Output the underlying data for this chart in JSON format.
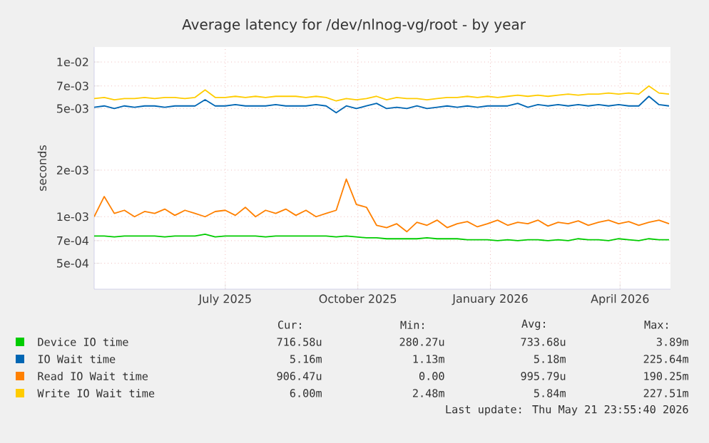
{
  "chart_data": {
    "type": "line",
    "title": "Average latency for /dev/nlnog-vg/root - by year",
    "ylabel": "seconds",
    "log": "y",
    "grid": true,
    "legend": "bottom",
    "xlim": [
      "2025-04-16",
      "2026-05-21"
    ],
    "ylim": [
      0.00034,
      0.0125
    ],
    "xticks": [
      {
        "value": "2025-07-16",
        "label": "July 2025"
      },
      {
        "value": "2025-10-16",
        "label": "October 2025"
      },
      {
        "value": "2026-01-16",
        "label": "January 2026"
      },
      {
        "value": "2026-04-16",
        "label": "April 2026"
      }
    ],
    "yticks": [
      {
        "value": 0.0005,
        "label": "5e-04"
      },
      {
        "value": 0.0007,
        "label": "7e-04"
      },
      {
        "value": 0.001,
        "label": "1e-03"
      },
      {
        "value": 0.002,
        "label": "2e-03"
      },
      {
        "value": 0.005,
        "label": "5e-03"
      },
      {
        "value": 0.007,
        "label": "7e-03"
      },
      {
        "value": 0.01,
        "label": "1e-02"
      }
    ],
    "x": [
      "2025-04-16",
      "2025-04-23",
      "2025-04-30",
      "2025-05-07",
      "2025-05-14",
      "2025-05-21",
      "2025-05-28",
      "2025-06-04",
      "2025-06-11",
      "2025-06-18",
      "2025-06-25",
      "2025-07-02",
      "2025-07-09",
      "2025-07-16",
      "2025-07-23",
      "2025-07-30",
      "2025-08-06",
      "2025-08-13",
      "2025-08-20",
      "2025-08-27",
      "2025-09-03",
      "2025-09-10",
      "2025-09-17",
      "2025-09-24",
      "2025-10-01",
      "2025-10-08",
      "2025-10-15",
      "2025-10-22",
      "2025-10-29",
      "2025-11-05",
      "2025-11-12",
      "2025-11-19",
      "2025-11-26",
      "2025-12-03",
      "2025-12-10",
      "2025-12-17",
      "2025-12-24",
      "2025-12-31",
      "2026-01-07",
      "2026-01-14",
      "2026-01-21",
      "2026-01-28",
      "2026-02-04",
      "2026-02-11",
      "2026-02-18",
      "2026-02-25",
      "2026-03-04",
      "2026-03-11",
      "2026-03-18",
      "2026-03-25",
      "2026-04-01",
      "2026-04-08",
      "2026-04-15",
      "2026-04-22",
      "2026-04-29",
      "2026-05-06",
      "2026-05-13",
      "2026-05-20"
    ],
    "series": [
      {
        "name": "Device IO time",
        "color": "#00cc00",
        "values": [
          0.00075,
          0.00075,
          0.00074,
          0.00075,
          0.00075,
          0.00075,
          0.00075,
          0.00074,
          0.00075,
          0.00075,
          0.00075,
          0.00077,
          0.00074,
          0.00075,
          0.00075,
          0.00075,
          0.00075,
          0.00074,
          0.00075,
          0.00075,
          0.00075,
          0.00075,
          0.00075,
          0.00075,
          0.00074,
          0.00075,
          0.00074,
          0.00073,
          0.00073,
          0.00072,
          0.00072,
          0.00072,
          0.00072,
          0.00073,
          0.00072,
          0.00072,
          0.00072,
          0.00071,
          0.00071,
          0.00071,
          0.0007,
          0.00071,
          0.0007,
          0.00071,
          0.00071,
          0.0007,
          0.00071,
          0.0007,
          0.00072,
          0.00071,
          0.00071,
          0.0007,
          0.00072,
          0.00071,
          0.0007,
          0.00072,
          0.00071,
          0.00071
        ]
      },
      {
        "name": "IO Wait time",
        "color": "#0066b3",
        "values": [
          0.0051,
          0.0052,
          0.005,
          0.0052,
          0.0051,
          0.0052,
          0.0052,
          0.0051,
          0.0052,
          0.0052,
          0.0052,
          0.0057,
          0.0052,
          0.0052,
          0.0053,
          0.0052,
          0.0052,
          0.0052,
          0.0053,
          0.0052,
          0.0052,
          0.0052,
          0.0053,
          0.0052,
          0.0047,
          0.0052,
          0.005,
          0.0052,
          0.0054,
          0.005,
          0.0051,
          0.005,
          0.0052,
          0.005,
          0.0051,
          0.0052,
          0.0051,
          0.0052,
          0.0051,
          0.0052,
          0.0052,
          0.0052,
          0.0054,
          0.0051,
          0.0053,
          0.0052,
          0.0053,
          0.0052,
          0.0053,
          0.0052,
          0.0053,
          0.0052,
          0.0053,
          0.0052,
          0.0052,
          0.006,
          0.0053,
          0.0052
        ]
      },
      {
        "name": "Read IO Wait time",
        "color": "#ff8000",
        "values": [
          0.001,
          0.00135,
          0.00105,
          0.0011,
          0.001,
          0.00108,
          0.00105,
          0.00112,
          0.00102,
          0.0011,
          0.00105,
          0.001,
          0.00108,
          0.0011,
          0.00102,
          0.00115,
          0.001,
          0.0011,
          0.00105,
          0.00112,
          0.00102,
          0.0011,
          0.001,
          0.00105,
          0.0011,
          0.00175,
          0.0012,
          0.00115,
          0.00088,
          0.00085,
          0.0009,
          0.0008,
          0.00092,
          0.00088,
          0.00095,
          0.00085,
          0.0009,
          0.00093,
          0.00086,
          0.0009,
          0.00095,
          0.00088,
          0.00092,
          0.0009,
          0.00095,
          0.00087,
          0.00092,
          0.0009,
          0.00094,
          0.00088,
          0.00092,
          0.00095,
          0.0009,
          0.00093,
          0.00088,
          0.00092,
          0.00095,
          0.0009
        ]
      },
      {
        "name": "Write IO Wait time",
        "color": "#ffcc00",
        "values": [
          0.0058,
          0.0059,
          0.0057,
          0.0058,
          0.0058,
          0.0059,
          0.0058,
          0.0059,
          0.0059,
          0.0058,
          0.0059,
          0.0066,
          0.0059,
          0.0059,
          0.006,
          0.0059,
          0.006,
          0.0059,
          0.006,
          0.006,
          0.006,
          0.0059,
          0.006,
          0.0059,
          0.0056,
          0.0058,
          0.0057,
          0.0058,
          0.006,
          0.0057,
          0.0059,
          0.0058,
          0.0058,
          0.0057,
          0.0058,
          0.0059,
          0.0059,
          0.006,
          0.0059,
          0.006,
          0.0059,
          0.006,
          0.0061,
          0.006,
          0.0061,
          0.006,
          0.0061,
          0.0062,
          0.0061,
          0.0062,
          0.0062,
          0.0063,
          0.0062,
          0.0063,
          0.0062,
          0.007,
          0.0063,
          0.0062
        ]
      }
    ],
    "annotations": [
      "Cur:",
      "Min:",
      "Avg:",
      "Max:",
      "716.58u",
      "280.27u",
      "733.68u",
      "3.89m",
      "5.16m",
      "1.13m",
      "5.18m",
      "225.64m",
      "906.47u",
      "0.00",
      "995.79u",
      "190.25m",
      "6.00m",
      "2.48m",
      "5.84m",
      "227.51m",
      "Last update: Thu May 21 23:55:40 2026"
    ]
  }
}
